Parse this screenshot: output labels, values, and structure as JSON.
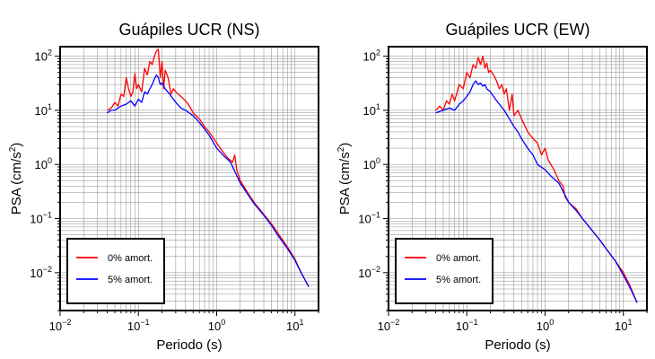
{
  "chart_data": [
    {
      "type": "line",
      "title": "Guápiles UCR (NS)",
      "xlabel": "Periodo (s)",
      "ylabel_main": "PSA (cm/s",
      "ylabel_sup": "2",
      "ylabel_close": ")",
      "xscale": "log",
      "yscale": "log",
      "xlim": [
        0.01,
        20
      ],
      "ylim": [
        0.002,
        150
      ],
      "grid": true,
      "legend_position": "bottom-left",
      "x_ticks": [
        {
          "base": "10",
          "exp": "−2"
        },
        {
          "base": "10",
          "exp": "−1"
        },
        {
          "base": "10",
          "exp": "0"
        },
        {
          "base": "10",
          "exp": "1"
        }
      ],
      "y_ticks": [
        {
          "base": "10",
          "exp": "−2"
        },
        {
          "base": "10",
          "exp": "−1"
        },
        {
          "base": "10",
          "exp": "0"
        },
        {
          "base": "10",
          "exp": "1"
        },
        {
          "base": "10",
          "exp": "2"
        }
      ],
      "series": [
        {
          "name": "0% amort.",
          "color": "#ff0000",
          "points": [
            [
              0.04,
              10
            ],
            [
              0.045,
              11
            ],
            [
              0.05,
              14
            ],
            [
              0.055,
              12
            ],
            [
              0.06,
              20
            ],
            [
              0.065,
              18
            ],
            [
              0.07,
              40
            ],
            [
              0.075,
              25
            ],
            [
              0.08,
              18
            ],
            [
              0.085,
              22
            ],
            [
              0.09,
              48
            ],
            [
              0.095,
              25
            ],
            [
              0.1,
              30
            ],
            [
              0.11,
              22
            ],
            [
              0.12,
              60
            ],
            [
              0.13,
              45
            ],
            [
              0.14,
              80
            ],
            [
              0.15,
              70
            ],
            [
              0.16,
              100
            ],
            [
              0.17,
              125
            ],
            [
              0.18,
              135
            ],
            [
              0.19,
              40
            ],
            [
              0.2,
              80
            ],
            [
              0.21,
              25
            ],
            [
              0.22,
              55
            ],
            [
              0.24,
              40
            ],
            [
              0.26,
              20
            ],
            [
              0.28,
              25
            ],
            [
              0.3,
              22
            ],
            [
              0.35,
              18
            ],
            [
              0.4,
              15
            ],
            [
              0.45,
              12
            ],
            [
              0.5,
              9
            ],
            [
              0.6,
              7
            ],
            [
              0.7,
              5
            ],
            [
              0.8,
              4
            ],
            [
              1.0,
              2.5
            ],
            [
              1.2,
              1.7
            ],
            [
              1.4,
              1.3
            ],
            [
              1.6,
              1.1
            ],
            [
              1.7,
              1.5
            ],
            [
              1.8,
              0.8
            ],
            [
              2.0,
              0.5
            ],
            [
              2.5,
              0.3
            ],
            [
              3.0,
              0.2
            ],
            [
              4.0,
              0.12
            ],
            [
              5.0,
              0.08
            ],
            [
              6.0,
              0.055
            ],
            [
              8.0,
              0.03
            ],
            [
              10.0,
              0.018
            ],
            [
              12.0,
              0.01
            ],
            [
              15.0,
              0.0055
            ]
          ]
        },
        {
          "name": "5% amort.",
          "color": "#0000ff",
          "points": [
            [
              0.04,
              9
            ],
            [
              0.045,
              10
            ],
            [
              0.05,
              10
            ],
            [
              0.06,
              12
            ],
            [
              0.07,
              13
            ],
            [
              0.08,
              15
            ],
            [
              0.09,
              12
            ],
            [
              0.1,
              16
            ],
            [
              0.11,
              14
            ],
            [
              0.12,
              22
            ],
            [
              0.13,
              20
            ],
            [
              0.14,
              25
            ],
            [
              0.15,
              30
            ],
            [
              0.16,
              38
            ],
            [
              0.17,
              45
            ],
            [
              0.18,
              40
            ],
            [
              0.19,
              30
            ],
            [
              0.2,
              32
            ],
            [
              0.22,
              25
            ],
            [
              0.25,
              20
            ],
            [
              0.3,
              14
            ],
            [
              0.35,
              11
            ],
            [
              0.4,
              10
            ],
            [
              0.5,
              8
            ],
            [
              0.6,
              6
            ],
            [
              0.7,
              4.5
            ],
            [
              0.8,
              3.5
            ],
            [
              1.0,
              2.0
            ],
            [
              1.2,
              1.5
            ],
            [
              1.5,
              1.1
            ],
            [
              2.0,
              0.45
            ],
            [
              2.5,
              0.28
            ],
            [
              3.0,
              0.19
            ],
            [
              4.0,
              0.115
            ],
            [
              5.0,
              0.075
            ],
            [
              6.0,
              0.05
            ],
            [
              8.0,
              0.028
            ],
            [
              10.0,
              0.017
            ],
            [
              12.0,
              0.01
            ],
            [
              15.0,
              0.0055
            ]
          ]
        }
      ]
    },
    {
      "type": "line",
      "title": "Guápiles UCR (EW)",
      "xlabel": "Periodo (s)",
      "ylabel_main": "PSA (cm/s",
      "ylabel_sup": "2",
      "ylabel_close": ")",
      "xscale": "log",
      "yscale": "log",
      "xlim": [
        0.01,
        20
      ],
      "ylim": [
        0.002,
        150
      ],
      "grid": true,
      "legend_position": "bottom-left",
      "x_ticks": [
        {
          "base": "10",
          "exp": "−2"
        },
        {
          "base": "10",
          "exp": "−1"
        },
        {
          "base": "10",
          "exp": "0"
        },
        {
          "base": "10",
          "exp": "1"
        }
      ],
      "y_ticks": [
        {
          "base": "10",
          "exp": "−2"
        },
        {
          "base": "10",
          "exp": "−1"
        },
        {
          "base": "10",
          "exp": "0"
        },
        {
          "base": "10",
          "exp": "1"
        },
        {
          "base": "10",
          "exp": "2"
        }
      ],
      "series": [
        {
          "name": "0% amort.",
          "color": "#ff0000",
          "points": [
            [
              0.04,
              10
            ],
            [
              0.045,
              12
            ],
            [
              0.05,
              10
            ],
            [
              0.055,
              15
            ],
            [
              0.06,
              13
            ],
            [
              0.065,
              20
            ],
            [
              0.07,
              15
            ],
            [
              0.08,
              30
            ],
            [
              0.09,
              25
            ],
            [
              0.1,
              50
            ],
            [
              0.11,
              40
            ],
            [
              0.12,
              70
            ],
            [
              0.13,
              60
            ],
            [
              0.14,
              95
            ],
            [
              0.15,
              70
            ],
            [
              0.16,
              100
            ],
            [
              0.17,
              60
            ],
            [
              0.18,
              75
            ],
            [
              0.19,
              50
            ],
            [
              0.2,
              55
            ],
            [
              0.22,
              45
            ],
            [
              0.24,
              35
            ],
            [
              0.26,
              25
            ],
            [
              0.28,
              30
            ],
            [
              0.3,
              20
            ],
            [
              0.32,
              25
            ],
            [
              0.35,
              10
            ],
            [
              0.38,
              20
            ],
            [
              0.4,
              8
            ],
            [
              0.45,
              10
            ],
            [
              0.5,
              7
            ],
            [
              0.6,
              4
            ],
            [
              0.7,
              3
            ],
            [
              0.8,
              2.5
            ],
            [
              0.9,
              1.5
            ],
            [
              1.0,
              2.0
            ],
            [
              1.1,
              1.2
            ],
            [
              1.3,
              0.8
            ],
            [
              1.5,
              0.5
            ],
            [
              1.7,
              0.4
            ],
            [
              1.8,
              0.25
            ],
            [
              2.0,
              0.2
            ],
            [
              2.5,
              0.15
            ],
            [
              3.0,
              0.1
            ],
            [
              4.0,
              0.06
            ],
            [
              5.0,
              0.04
            ],
            [
              6.0,
              0.028
            ],
            [
              8.0,
              0.016
            ],
            [
              10.0,
              0.01
            ],
            [
              12.0,
              0.006
            ],
            [
              15.0,
              0.0028
            ]
          ]
        },
        {
          "name": "5% amort.",
          "color": "#0000ff",
          "points": [
            [
              0.04,
              9
            ],
            [
              0.05,
              10
            ],
            [
              0.06,
              11
            ],
            [
              0.07,
              10
            ],
            [
              0.08,
              13
            ],
            [
              0.09,
              15
            ],
            [
              0.1,
              18
            ],
            [
              0.11,
              22
            ],
            [
              0.12,
              30
            ],
            [
              0.13,
              35
            ],
            [
              0.14,
              30
            ],
            [
              0.15,
              32
            ],
            [
              0.16,
              28
            ],
            [
              0.17,
              30
            ],
            [
              0.18,
              25
            ],
            [
              0.2,
              22
            ],
            [
              0.22,
              18
            ],
            [
              0.25,
              14
            ],
            [
              0.3,
              10
            ],
            [
              0.35,
              7
            ],
            [
              0.4,
              5
            ],
            [
              0.45,
              4
            ],
            [
              0.5,
              3
            ],
            [
              0.6,
              2
            ],
            [
              0.7,
              1.5
            ],
            [
              0.8,
              1.0
            ],
            [
              1.0,
              0.8
            ],
            [
              1.2,
              0.6
            ],
            [
              1.5,
              0.45
            ],
            [
              2.0,
              0.2
            ],
            [
              2.5,
              0.14
            ],
            [
              3.0,
              0.1
            ],
            [
              4.0,
              0.06
            ],
            [
              5.0,
              0.04
            ],
            [
              6.0,
              0.028
            ],
            [
              8.0,
              0.016
            ],
            [
              10.0,
              0.009
            ],
            [
              12.0,
              0.0055
            ],
            [
              15.0,
              0.0028
            ]
          ]
        }
      ]
    }
  ]
}
